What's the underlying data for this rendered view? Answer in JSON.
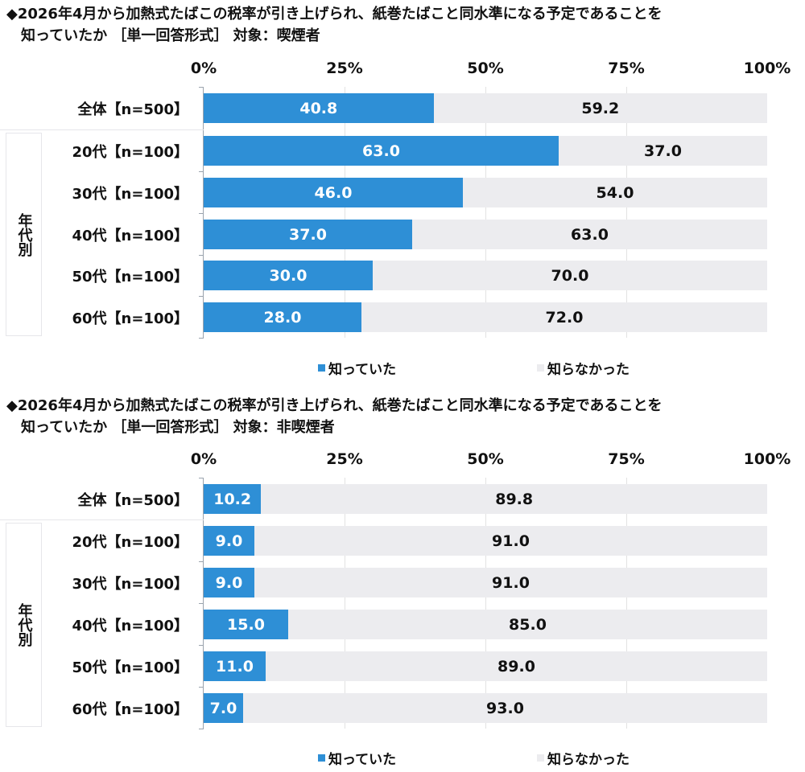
{
  "colors": {
    "known": "#2e8fd6",
    "unknown": "#ececef"
  },
  "chart_data": [
    {
      "type": "bar",
      "stacked": true,
      "orientation": "horizontal",
      "title": "◆2026年4月から加熱式たばこの税率が引き上げられ、紙巻たばこと同水準になる予定であることを\n　知っていたか ［単一回答形式］ 対象：喫煙者",
      "xticks": [
        "0%",
        "25%",
        "50%",
        "75%",
        "100%"
      ],
      "xlim": [
        0,
        100
      ],
      "group_label": "年代別",
      "categories": [
        "全体【n=500】",
        "20代【n=100】",
        "30代【n=100】",
        "40代【n=100】",
        "50代【n=100】",
        "60代【n=100】"
      ],
      "series": [
        {
          "name": "知っていた",
          "values": [
            "40.8",
            "63.0",
            "46.0",
            "37.0",
            "30.0",
            "28.0"
          ]
        },
        {
          "name": "知らなかった",
          "values": [
            "59.2",
            "37.0",
            "54.0",
            "63.0",
            "70.0",
            "72.0"
          ]
        }
      ]
    },
    {
      "type": "bar",
      "stacked": true,
      "orientation": "horizontal",
      "title": "◆2026年4月から加熱式たばこの税率が引き上げられ、紙巻たばこと同水準になる予定であることを\n　知っていたか ［単一回答形式］ 対象：非喫煙者",
      "xticks": [
        "0%",
        "25%",
        "50%",
        "75%",
        "100%"
      ],
      "xlim": [
        0,
        100
      ],
      "group_label": "年代別",
      "categories": [
        "全体【n=500】",
        "20代【n=100】",
        "30代【n=100】",
        "40代【n=100】",
        "50代【n=100】",
        "60代【n=100】"
      ],
      "series": [
        {
          "name": "知っていた",
          "values": [
            "10.2",
            "9.0",
            "9.0",
            "15.0",
            "11.0",
            "7.0"
          ]
        },
        {
          "name": "知らなかった",
          "values": [
            "89.8",
            "91.0",
            "91.0",
            "85.0",
            "89.0",
            "93.0"
          ]
        }
      ]
    }
  ]
}
